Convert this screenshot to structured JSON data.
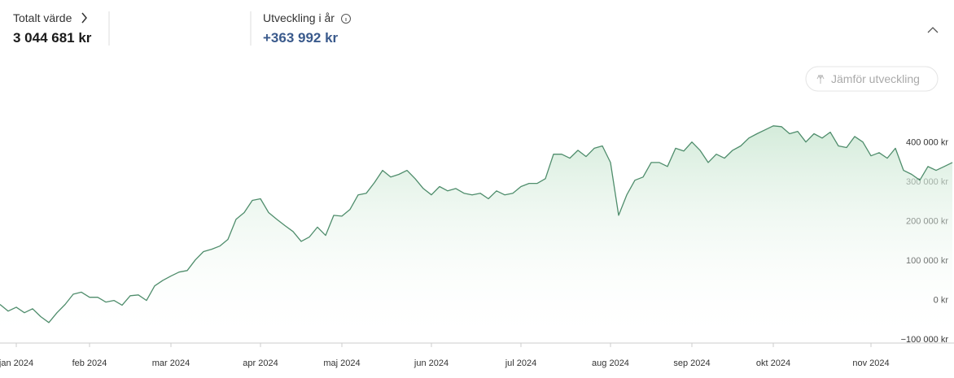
{
  "header": {
    "total_label": "Totalt värde",
    "total_value": "3 044 681 kr",
    "change_label": "Utveckling i år",
    "change_value": "+363 992 kr",
    "compare_button": "Jämför utveckling"
  },
  "chart_data": {
    "type": "area",
    "color": "#4f8d6c",
    "categories": [
      null,
      null,
      "jan 2024",
      null,
      null,
      null,
      null,
      null,
      null,
      null,
      null,
      "feb 2024",
      null,
      null,
      null,
      null,
      null,
      null,
      null,
      null,
      null,
      "mar 2024",
      null,
      null,
      null,
      null,
      null,
      null,
      null,
      null,
      null,
      null,
      "apr 2024",
      null,
      null,
      null,
      null,
      null,
      null,
      null,
      null,
      null,
      "maj 2024",
      null,
      null,
      null,
      null,
      null,
      null,
      null,
      null,
      null,
      null,
      "jun 2024",
      null,
      null,
      null,
      null,
      null,
      null,
      null,
      null,
      null,
      null,
      "jul 2024",
      null,
      null,
      null,
      null,
      null,
      null,
      null,
      null,
      null,
      null,
      "aug 2024",
      null,
      null,
      null,
      null,
      null,
      null,
      null,
      null,
      null,
      "sep 2024",
      null,
      null,
      null,
      null,
      null,
      null,
      null,
      null,
      null,
      "okt 2024",
      null,
      null,
      null,
      null,
      null,
      null,
      null,
      null,
      null,
      null,
      null,
      "nov 2024",
      null,
      null,
      null,
      null,
      null,
      null,
      null,
      null,
      null,
      null
    ],
    "values": [
      -12000,
      -29000,
      -19000,
      -33000,
      -23000,
      -43000,
      -58000,
      -33000,
      -12000,
      14000,
      19000,
      6000,
      6000,
      -6000,
      -2000,
      -14000,
      10000,
      12000,
      -2000,
      35000,
      49000,
      60000,
      70000,
      74000,
      101000,
      122000,
      128000,
      136000,
      153000,
      204000,
      221000,
      252000,
      256000,
      221000,
      204000,
      188000,
      173000,
      148000,
      159000,
      184000,
      163000,
      214000,
      212000,
      229000,
      266000,
      270000,
      297000,
      328000,
      311000,
      318000,
      328000,
      307000,
      282000,
      266000,
      287000,
      276000,
      282000,
      270000,
      266000,
      270000,
      256000,
      276000,
      266000,
      270000,
      287000,
      295000,
      295000,
      307000,
      369000,
      369000,
      359000,
      379000,
      363000,
      384000,
      390000,
      348000,
      214000,
      266000,
      303000,
      311000,
      348000,
      348000,
      338000,
      384000,
      377000,
      400000,
      379000,
      348000,
      369000,
      359000,
      379000,
      390000,
      410000,
      421000,
      431000,
      441000,
      439000,
      421000,
      427000,
      400000,
      421000,
      410000,
      425000,
      390000,
      386000,
      414000,
      400000,
      365000,
      373000,
      359000,
      384000,
      328000,
      318000,
      303000,
      338000,
      328000,
      338000,
      348000
    ],
    "ylim": [
      -110000,
      520000
    ],
    "yticks": [
      {
        "value": -100000,
        "label": "−100 000 kr"
      },
      {
        "value": 0,
        "label": "0 kr"
      },
      {
        "value": 100000,
        "label": "100 000 kr"
      },
      {
        "value": 200000,
        "label": "200 000 kr"
      },
      {
        "value": 300000,
        "label": "300 000 kr"
      },
      {
        "value": 400000,
        "label": "400 000 kr"
      }
    ]
  }
}
